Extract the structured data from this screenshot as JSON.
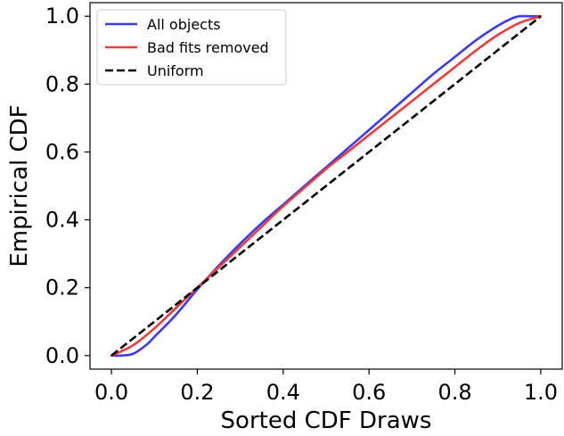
{
  "chart_data": {
    "type": "line",
    "title": "",
    "xlabel": "Sorted CDF Draws",
    "ylabel": "Empirical CDF",
    "xlim": [
      -0.05,
      1.05
    ],
    "ylim": [
      -0.04,
      1.04
    ],
    "xticks": [
      0.0,
      0.2,
      0.4,
      0.6,
      0.8,
      1.0
    ],
    "xtick_labels": [
      "0.0",
      "0.2",
      "0.4",
      "0.6",
      "0.8",
      "1.0"
    ],
    "yticks": [
      0.0,
      0.2,
      0.4,
      0.6,
      0.8,
      1.0
    ],
    "ytick_labels": [
      "0.0",
      "0.2",
      "0.4",
      "0.6",
      "0.8",
      "1.0"
    ],
    "grid": false,
    "legend_position": "upper-left",
    "series": [
      {
        "name": "All objects",
        "color": "#3b3bec",
        "style": "solid",
        "x": [
          0.0,
          0.02,
          0.05,
          0.08,
          0.1,
          0.15,
          0.2,
          0.25,
          0.3,
          0.35,
          0.4,
          0.45,
          0.5,
          0.55,
          0.6,
          0.65,
          0.7,
          0.75,
          0.8,
          0.85,
          0.9,
          0.93,
          0.95,
          0.97,
          1.0
        ],
        "y": [
          0.0,
          0.0,
          0.005,
          0.03,
          0.055,
          0.12,
          0.195,
          0.265,
          0.33,
          0.39,
          0.445,
          0.5,
          0.555,
          0.61,
          0.665,
          0.72,
          0.775,
          0.83,
          0.88,
          0.93,
          0.972,
          0.992,
          1.0,
          1.0,
          1.0
        ]
      },
      {
        "name": "Bad fits removed",
        "color": "#ee3b3b",
        "style": "solid",
        "x": [
          0.0,
          0.05,
          0.1,
          0.15,
          0.2,
          0.25,
          0.3,
          0.35,
          0.4,
          0.45,
          0.5,
          0.55,
          0.6,
          0.65,
          0.7,
          0.75,
          0.8,
          0.85,
          0.9,
          0.95,
          1.0
        ],
        "y": [
          0.0,
          0.03,
          0.08,
          0.14,
          0.2,
          0.26,
          0.32,
          0.38,
          0.44,
          0.495,
          0.55,
          0.6,
          0.65,
          0.7,
          0.75,
          0.8,
          0.85,
          0.9,
          0.945,
          0.98,
          1.0
        ]
      },
      {
        "name": "Uniform",
        "color": "#000000",
        "style": "dashed",
        "x": [
          0.0,
          1.0
        ],
        "y": [
          0.0,
          1.0
        ]
      }
    ]
  }
}
